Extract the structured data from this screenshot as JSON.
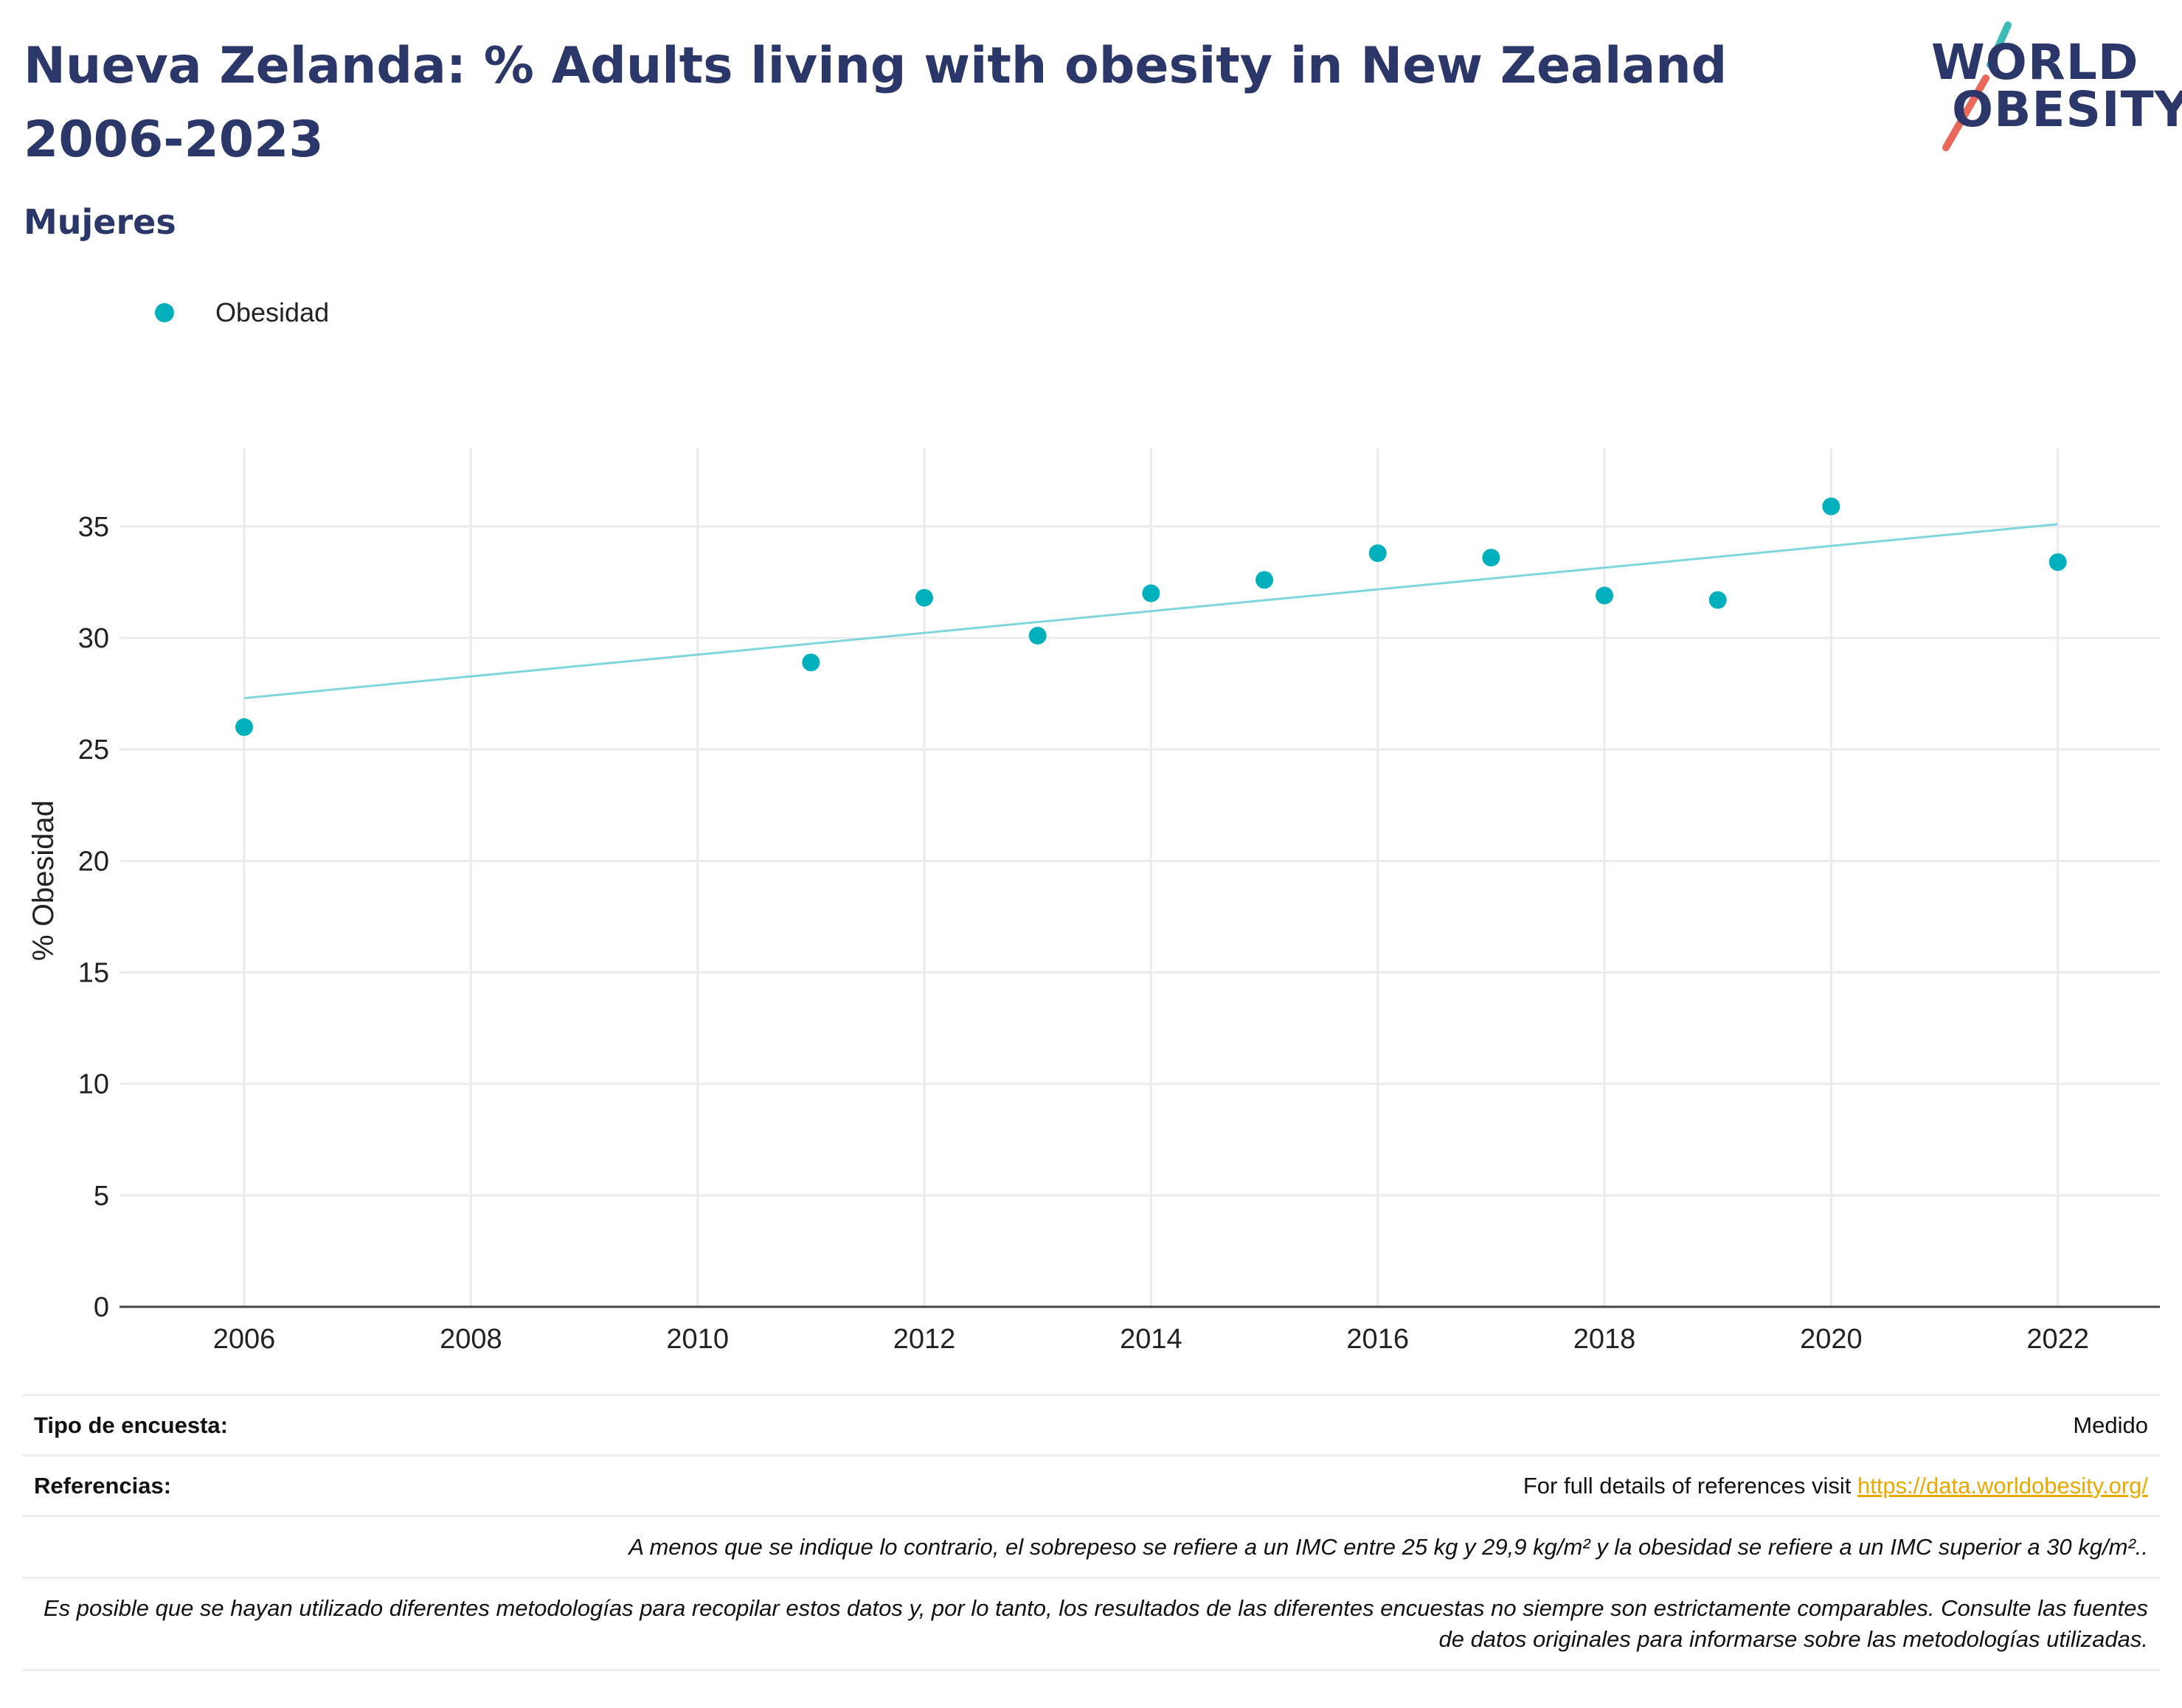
{
  "header": {
    "title": "Nueva Zelanda: % Adults living with obesity in New Zealand 2006-2023",
    "subtitle": "Mujeres",
    "logo_line1": "WORLD",
    "logo_line2": "OBESITY"
  },
  "legend": {
    "label": "Obesidad"
  },
  "chart_data": {
    "type": "scatter",
    "title": "Nueva Zelanda: % Adults living with obesity in New Zealand 2006-2023",
    "subtitle": "Mujeres",
    "xlabel": "",
    "ylabel": "% Obesidad",
    "xlim": [
      2004.9,
      2022.9
    ],
    "ylim": [
      0,
      38.5
    ],
    "x_ticks": [
      2006,
      2008,
      2010,
      2012,
      2014,
      2016,
      2018,
      2020,
      2022
    ],
    "y_ticks": [
      0,
      5,
      10,
      15,
      20,
      25,
      30,
      35
    ],
    "grid": true,
    "legend_position": "top-left",
    "series": [
      {
        "name": "Obesidad",
        "color": "#00b0bd",
        "x": [
          2006,
          2011,
          2012,
          2013,
          2014,
          2015,
          2016,
          2017,
          2018,
          2019,
          2020,
          2022
        ],
        "y": [
          26.0,
          28.9,
          31.8,
          30.1,
          32.0,
          32.6,
          33.8,
          33.6,
          31.9,
          31.7,
          35.9,
          33.4
        ]
      }
    ],
    "trendline": {
      "color": "#7fd7db",
      "x": [
        2006,
        2022
      ],
      "y": [
        27.3,
        35.1
      ]
    }
  },
  "footer": {
    "survey_label": "Tipo de encuesta:",
    "survey_value": "Medido",
    "refs_label": "Referencias:",
    "refs_text": "For full details of references visit ",
    "refs_link": "https://data.worldobesity.org/",
    "note1": "A menos que se indique lo contrario, el sobrepeso se refiere a un IMC entre 25 kg y 29,9 kg/m² y la obesidad se refiere a un IMC superior a 30 kg/m²..",
    "note2": "Es posible que se hayan utilizado diferentes metodologías para recopilar estos datos y, por lo tanto, los resultados de las diferentes encuestas no siempre son estrictamente comparables. Consulte las fuentes de datos originales para informarse sobre las metodologías utilizadas."
  },
  "colors": {
    "title": "#2b3768",
    "accent": "#00b0bd",
    "trend": "#7fd7db",
    "link": "#e8a900",
    "logo_teal": "#3bbcb6",
    "logo_red": "#e8685a"
  }
}
